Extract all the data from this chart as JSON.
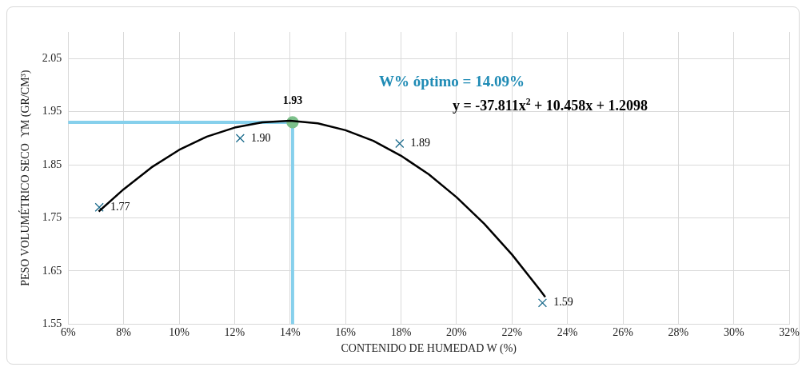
{
  "chart_data": {
    "type": "scatter",
    "xlabel": "CONTENIDO DE HUMEDAD W (%)",
    "ylabel": "PESO VOLUMÉTRICO SECO  ϒM (GR/CM³)",
    "xlim": [
      6,
      32
    ],
    "xticks": [
      {
        "value": 6,
        "label": "6%"
      },
      {
        "value": 8,
        "label": "8%"
      },
      {
        "value": 10,
        "label": "10%"
      },
      {
        "value": 12,
        "label": "12%"
      },
      {
        "value": 14,
        "label": "14%"
      },
      {
        "value": 16,
        "label": "16%"
      },
      {
        "value": 18,
        "label": "18%"
      },
      {
        "value": 20,
        "label": "20%"
      },
      {
        "value": 22,
        "label": "22%"
      },
      {
        "value": 24,
        "label": "24%"
      },
      {
        "value": 26,
        "label": "26%"
      },
      {
        "value": 28,
        "label": "28%"
      },
      {
        "value": 30,
        "label": "30%"
      },
      {
        "value": 32,
        "label": "32%"
      }
    ],
    "ylim": [
      1.55,
      2.1
    ],
    "yticks": [
      1.55,
      1.65,
      1.75,
      1.85,
      1.95,
      2.05
    ],
    "grid": true,
    "legend": false,
    "series": [
      {
        "type": "line",
        "color": "#000000",
        "marker": "none",
        "line_style": "solid",
        "x": [
          7.1,
          8,
          9,
          10,
          11,
          12,
          13,
          14,
          15,
          16,
          17,
          18,
          19,
          20,
          21,
          22,
          23,
          23.2
        ],
        "values": [
          1.762,
          1.804,
          1.845,
          1.878,
          1.903,
          1.92,
          1.93,
          1.933,
          1.928,
          1.915,
          1.895,
          1.867,
          1.832,
          1.789,
          1.739,
          1.681,
          1.615,
          1.601
        ]
      },
      {
        "type": "scatter",
        "color": "#1b6b8c",
        "marker": "cross",
        "x": [
          7.12,
          12.2,
          17.95,
          23.1
        ],
        "values": [
          1.77,
          1.9,
          1.89,
          1.59
        ],
        "value_labels": [
          "1.77",
          "1.90",
          "1.89",
          "1.59"
        ]
      },
      {
        "type": "scatter",
        "color": "#7cc08a",
        "marker": "circle",
        "x": [
          14.09
        ],
        "values": [
          1.93
        ],
        "value_labels": [
          "1.93"
        ]
      }
    ],
    "ref_lines": [
      {
        "axis": "y",
        "value": 1.93,
        "color": "#86d0ec"
      },
      {
        "axis": "x",
        "value": 14.09,
        "color": "#86d0ec"
      }
    ],
    "annotations": [
      "W% óptimo = 14.09%",
      "y = -37.811x$^{2}$ + 10.458x + 1.2098"
    ]
  }
}
